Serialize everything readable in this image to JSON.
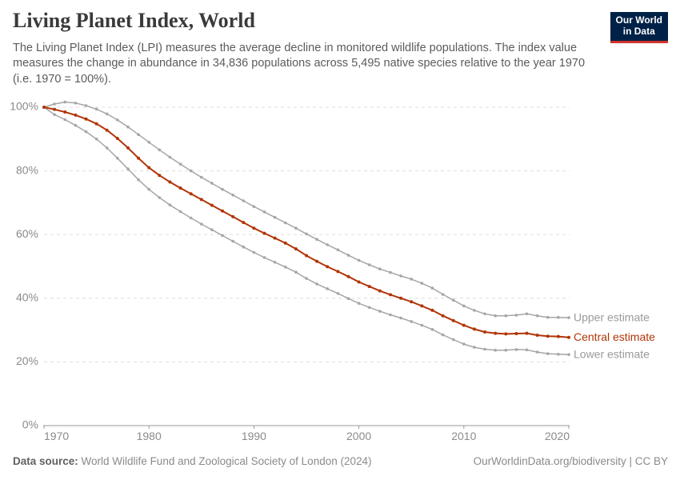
{
  "header": {
    "title": "Living Planet Index, World",
    "subtitle": "The Living Planet Index (LPI) measures the average decline in monitored wildlife populations. The index value measures the change in abundance in 34,836 populations across 5,495 native species relative to the year 1970 (i.e. 1970 = 100%).",
    "logo": {
      "line1": "Our World",
      "line2": "in Data",
      "bg_color": "#002147",
      "bar_color": "#d0342c"
    }
  },
  "chart_data": {
    "type": "line",
    "title": "Living Planet Index, World",
    "xlabel": "",
    "ylabel": "",
    "xlim": [
      1970,
      2020
    ],
    "ylim": [
      0,
      100
    ],
    "x_ticks": [
      1970,
      1980,
      1990,
      2000,
      2010,
      2020
    ],
    "y_ticks": [
      0,
      20,
      40,
      60,
      80,
      100
    ],
    "y_tick_suffix": "%",
    "grid": "horizontal-dashed",
    "legend_position": "right-end-of-lines",
    "x": [
      1970,
      1971,
      1972,
      1973,
      1974,
      1975,
      1976,
      1977,
      1978,
      1979,
      1980,
      1981,
      1982,
      1983,
      1984,
      1985,
      1986,
      1987,
      1988,
      1989,
      1990,
      1991,
      1992,
      1993,
      1994,
      1995,
      1996,
      1997,
      1998,
      1999,
      2000,
      2001,
      2002,
      2003,
      2004,
      2005,
      2006,
      2007,
      2008,
      2009,
      2010,
      2011,
      2012,
      2013,
      2014,
      2015,
      2016,
      2017,
      2018,
      2019,
      2020
    ],
    "series": [
      {
        "name": "Upper estimate",
        "color": "#a6a6a6",
        "label_color": "#9a9a9a",
        "values": [
          100.0,
          101.0,
          101.6,
          101.3,
          100.5,
          99.4,
          97.9,
          96.0,
          93.8,
          91.4,
          89.0,
          86.6,
          84.3,
          82.1,
          80.0,
          78.0,
          76.1,
          74.2,
          72.4,
          70.6,
          68.8,
          67.1,
          65.4,
          63.7,
          62.0,
          60.2,
          58.5,
          56.8,
          55.2,
          53.5,
          51.9,
          50.5,
          49.2,
          48.1,
          47.0,
          46.0,
          44.7,
          43.2,
          41.2,
          39.4,
          37.6,
          36.2,
          35.1,
          34.5,
          34.5,
          34.7,
          35.1,
          34.5,
          34.0,
          34.0,
          33.9
        ]
      },
      {
        "name": "Central estimate",
        "color": "#b13507",
        "label_color": "#b13507",
        "values": [
          100.0,
          99.3,
          98.5,
          97.5,
          96.3,
          94.8,
          92.8,
          90.2,
          87.2,
          84.0,
          81.0,
          78.6,
          76.5,
          74.6,
          72.8,
          71.0,
          69.2,
          67.4,
          65.6,
          63.8,
          62.0,
          60.4,
          58.9,
          57.3,
          55.5,
          53.4,
          51.6,
          49.9,
          48.4,
          46.8,
          45.1,
          43.7,
          42.3,
          41.1,
          40.0,
          38.9,
          37.6,
          36.2,
          34.5,
          33.0,
          31.5,
          30.3,
          29.4,
          29.0,
          28.8,
          28.9,
          29.0,
          28.4,
          28.1,
          28.0,
          27.7
        ]
      },
      {
        "name": "Lower estimate",
        "color": "#a6a6a6",
        "label_color": "#9a9a9a",
        "values": [
          100.0,
          97.7,
          96.1,
          94.3,
          92.3,
          90.0,
          87.2,
          84.0,
          80.6,
          77.2,
          74.2,
          71.6,
          69.3,
          67.2,
          65.2,
          63.3,
          61.5,
          59.7,
          57.9,
          56.1,
          54.4,
          52.8,
          51.3,
          49.8,
          48.2,
          46.2,
          44.5,
          43.0,
          41.5,
          39.9,
          38.4,
          37.1,
          35.9,
          34.8,
          33.8,
          32.7,
          31.5,
          30.2,
          28.5,
          27.0,
          25.6,
          24.6,
          24.0,
          23.7,
          23.7,
          23.9,
          23.8,
          23.1,
          22.6,
          22.4,
          22.3
        ]
      }
    ]
  },
  "footer": {
    "source_label": "Data source:",
    "source_text": "World Wildlife Fund and Zoological Society of London (2024)",
    "credit": "OurWorldinData.org/biodiversity | CC BY"
  },
  "colors": {
    "accent_red": "#b13507",
    "series_gray": "#a6a6a6",
    "gridline": "#dddddd",
    "axis": "#999999",
    "tick_text": "#8b8b8b"
  }
}
